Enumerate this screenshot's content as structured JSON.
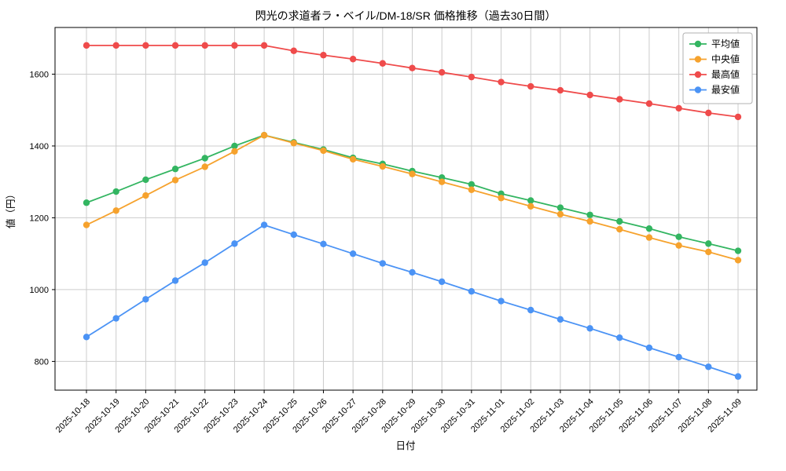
{
  "chart_data": {
    "type": "line",
    "title": "閃光の求道者ラ・ベイル/DM-18/SR 価格推移（過去30日間）",
    "xlabel": "日付",
    "ylabel": "値（円）",
    "ylim": [
      720,
      1730
    ],
    "yticks": [
      800,
      1000,
      1200,
      1400,
      1600
    ],
    "grid": true,
    "legend_position": "upper right",
    "categories": [
      "2025-10-18",
      "2025-10-19",
      "2025-10-20",
      "2025-10-21",
      "2025-10-22",
      "2025-10-23",
      "2025-10-24",
      "2025-10-25",
      "2025-10-26",
      "2025-10-27",
      "2025-10-28",
      "2025-10-29",
      "2025-10-30",
      "2025-10-31",
      "2025-11-01",
      "2025-11-02",
      "2025-11-03",
      "2025-11-04",
      "2025-11-05",
      "2025-11-06",
      "2025-11-07",
      "2025-11-08",
      "2025-11-09"
    ],
    "series": [
      {
        "key": "average",
        "name": "平均値",
        "color": "#33b561",
        "values": [
          1242,
          1273,
          1306,
          1336,
          1366,
          1400,
          1430,
          1410,
          1390,
          1367,
          1350,
          1330,
          1312,
          1293,
          1267,
          1248,
          1228,
          1208,
          1190,
          1170,
          1147,
          1128,
          1108
        ]
      },
      {
        "key": "median",
        "name": "中央値",
        "color": "#f6a22d",
        "values": [
          1180,
          1220,
          1262,
          1305,
          1342,
          1385,
          1430,
          1408,
          1387,
          1363,
          1343,
          1322,
          1300,
          1278,
          1255,
          1232,
          1210,
          1190,
          1168,
          1145,
          1123,
          1105,
          1082
        ]
      },
      {
        "key": "highest",
        "name": "最高値",
        "color": "#ef4b4b",
        "values": [
          1680,
          1680,
          1680,
          1680,
          1680,
          1680,
          1680,
          1665,
          1653,
          1642,
          1630,
          1617,
          1605,
          1592,
          1578,
          1566,
          1555,
          1542,
          1530,
          1518,
          1505,
          1492,
          1481
        ]
      },
      {
        "key": "lowest",
        "name": "最安値",
        "color": "#4b93f5",
        "values": [
          868,
          920,
          973,
          1025,
          1075,
          1128,
          1180,
          1153,
          1127,
          1100,
          1073,
          1048,
          1022,
          995,
          968,
          943,
          917,
          892,
          866,
          838,
          812,
          785,
          758
        ]
      }
    ]
  }
}
